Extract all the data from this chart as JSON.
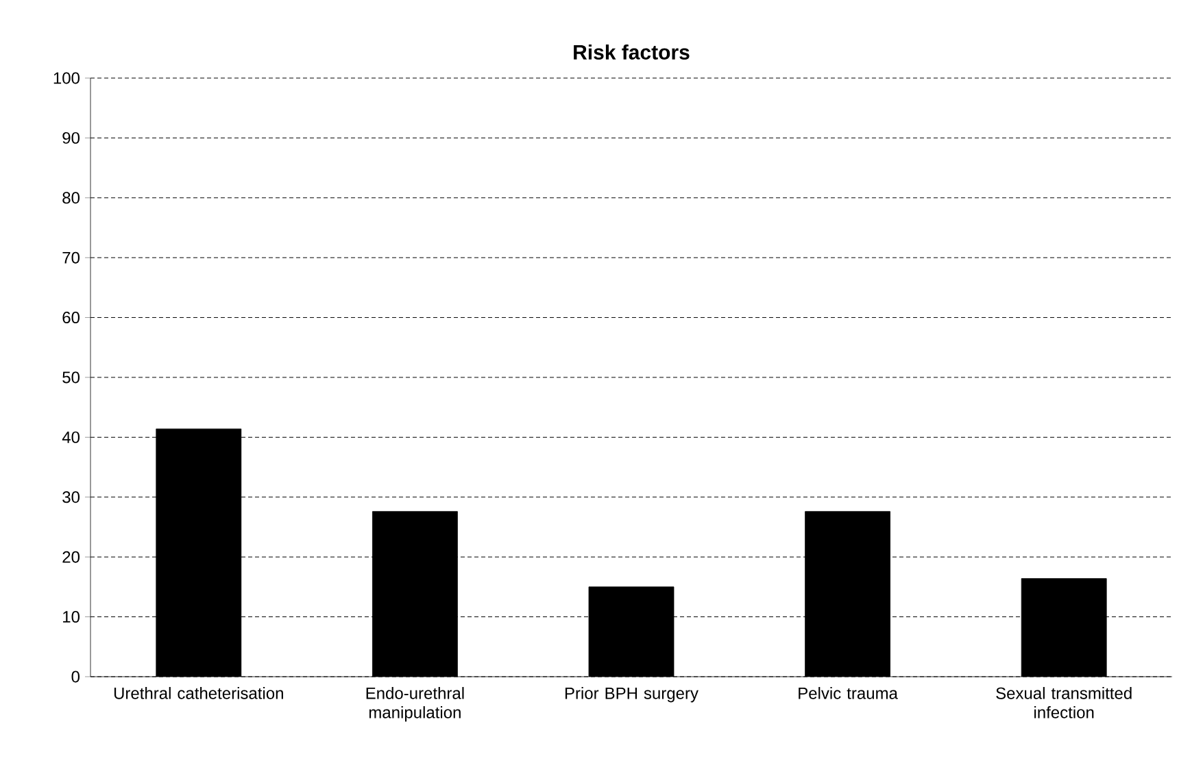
{
  "chart_data": {
    "type": "bar",
    "title": "Risk factors",
    "categories": [
      "Urethral catheterisation",
      "Endo-urethral manipulation",
      "Prior BPH surgery",
      "Pelvic trauma",
      "Sexual transmitted infection"
    ],
    "values": [
      41.4,
      27.6,
      15,
      27.6,
      16.4
    ],
    "color": "#000000",
    "ylim": [
      0,
      100
    ],
    "yticks": [
      0,
      10,
      20,
      30,
      40,
      50,
      60,
      70,
      80,
      90,
      100
    ],
    "grid": "y"
  }
}
